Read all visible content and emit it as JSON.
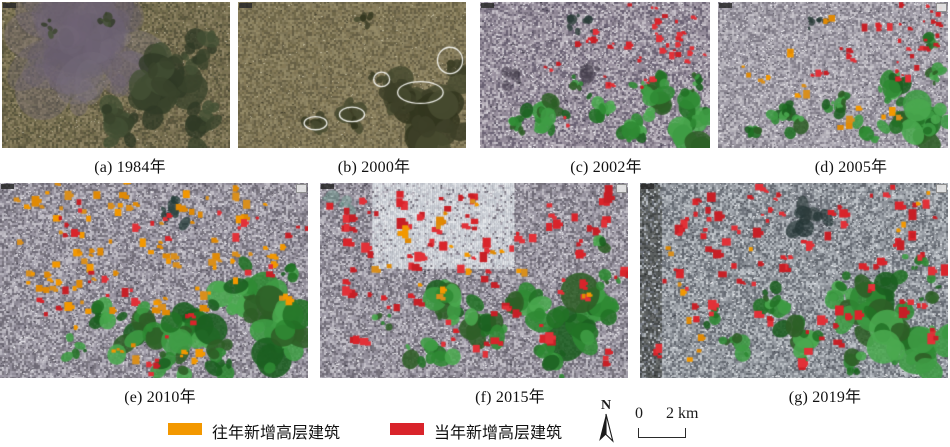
{
  "figure": {
    "panels": [
      {
        "id": "a",
        "year": "1984",
        "caption": "(a) 1984年"
      },
      {
        "id": "b",
        "year": "2000",
        "caption": "(b) 2000年"
      },
      {
        "id": "c",
        "year": "2002",
        "caption": "(c) 2002年"
      },
      {
        "id": "d",
        "year": "2005",
        "caption": "(d) 2005年"
      },
      {
        "id": "e",
        "year": "2010",
        "caption": "(e) 2010年"
      },
      {
        "id": "f",
        "year": "2015",
        "caption": "(f) 2015年"
      },
      {
        "id": "g",
        "year": "2019",
        "caption": "(g) 2019年"
      }
    ],
    "legend": [
      {
        "label": "往年新增高层建筑",
        "color": "#F39800"
      },
      {
        "label": "当年新增高层建筑",
        "color": "#D9242B"
      }
    ],
    "north_label": "N",
    "scale_bar": {
      "start": "0",
      "end": "2 km"
    }
  }
}
